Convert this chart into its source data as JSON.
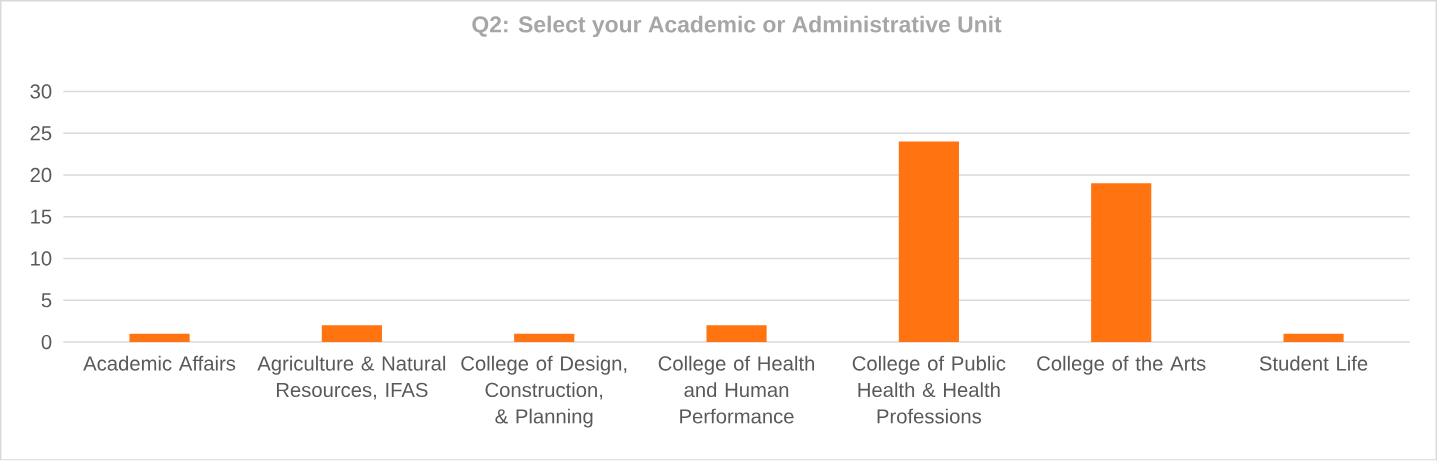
{
  "chart_data": {
    "type": "bar",
    "title": "Q2: Select your Academic or Administrative Unit",
    "categories": [
      "Academic Affairs",
      "Agriculture & Natural Resources, IFAS",
      "College of Design, Construction, & Planning",
      "College of Health and Human Performance",
      "College of Public Health & Health Professions",
      "College of the Arts",
      "Student Life"
    ],
    "values": [
      1,
      2,
      1,
      2,
      24,
      19,
      1
    ],
    "color": "#ff7311",
    "ylim": [
      0,
      30
    ],
    "yticks": [
      0,
      5,
      10,
      15,
      20,
      25,
      30
    ],
    "grid": "y"
  }
}
